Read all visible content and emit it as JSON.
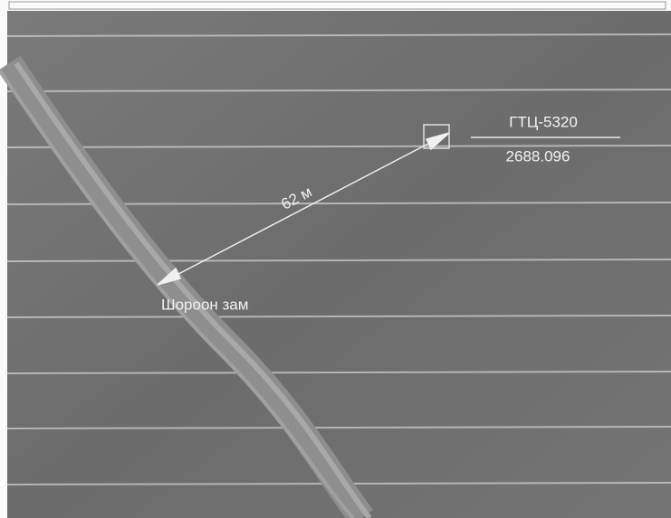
{
  "map": {
    "point": {
      "name": "ГТЦ-5320",
      "elevation": "2688.096"
    },
    "distance": "62 м",
    "road": "Шороон зам"
  }
}
